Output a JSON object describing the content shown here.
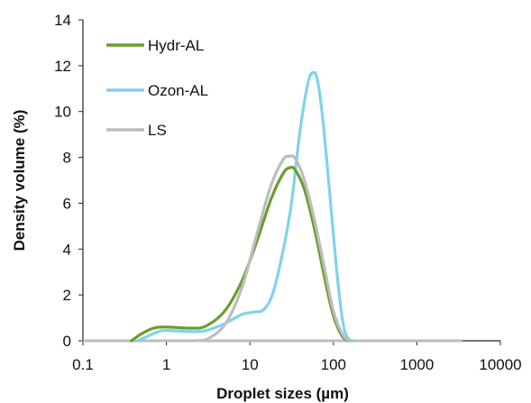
{
  "chart_data": {
    "type": "line",
    "title": "",
    "xlabel": "Droplet sizes (µm)",
    "ylabel": "Density volume (%)",
    "x_scale": "log",
    "xlim": [
      0.1,
      10000
    ],
    "ylim": [
      0,
      14
    ],
    "x_ticks": [
      0.1,
      1,
      10,
      100,
      1000,
      10000
    ],
    "x_tick_labels": [
      "0.1",
      "1",
      "10",
      "100",
      "1000",
      "10000"
    ],
    "y_ticks": [
      0,
      2,
      4,
      6,
      8,
      10,
      12,
      14
    ],
    "y_tick_labels": [
      "0",
      "2",
      "4",
      "6",
      "8",
      "10",
      "12",
      "14"
    ],
    "grid": false,
    "legend_position": "top-left",
    "series": [
      {
        "name": "Hydr-AL",
        "color": "#6a9e2f",
        "points": [
          [
            0.38,
            0
          ],
          [
            0.5,
            0.3
          ],
          [
            0.7,
            0.55
          ],
          [
            1,
            0.6
          ],
          [
            2,
            0.55
          ],
          [
            3,
            0.65
          ],
          [
            5,
            1.3
          ],
          [
            8,
            2.6
          ],
          [
            12,
            4.3
          ],
          [
            18,
            6.2
          ],
          [
            25,
            7.3
          ],
          [
            30,
            7.55
          ],
          [
            35,
            7.45
          ],
          [
            45,
            6.6
          ],
          [
            60,
            4.8
          ],
          [
            80,
            2.6
          ],
          [
            100,
            1.1
          ],
          [
            130,
            0.15
          ],
          [
            160,
            0
          ]
        ]
      },
      {
        "name": "Ozon-AL",
        "color": "#7fd3ec",
        "points": [
          [
            0.45,
            0
          ],
          [
            0.6,
            0.2
          ],
          [
            0.8,
            0.4
          ],
          [
            1,
            0.45
          ],
          [
            2,
            0.4
          ],
          [
            3,
            0.45
          ],
          [
            5,
            0.75
          ],
          [
            8,
            1.15
          ],
          [
            11,
            1.25
          ],
          [
            15,
            1.4
          ],
          [
            20,
            2.4
          ],
          [
            30,
            5.5
          ],
          [
            40,
            9.2
          ],
          [
            50,
            11.3
          ],
          [
            58,
            11.7
          ],
          [
            65,
            11.3
          ],
          [
            75,
            9.6
          ],
          [
            90,
            6.5
          ],
          [
            110,
            3.0
          ],
          [
            130,
            0.8
          ],
          [
            150,
            0.1
          ],
          [
            170,
            0
          ]
        ]
      },
      {
        "name": "LS",
        "color": "#bdbdbd",
        "points": [
          [
            2.2,
            0
          ],
          [
            3,
            0.05
          ],
          [
            5,
            0.7
          ],
          [
            8,
            2.3
          ],
          [
            12,
            4.6
          ],
          [
            18,
            6.8
          ],
          [
            25,
            7.9
          ],
          [
            30,
            8.05
          ],
          [
            35,
            7.95
          ],
          [
            45,
            7.0
          ],
          [
            60,
            5.2
          ],
          [
            80,
            3.0
          ],
          [
            100,
            1.3
          ],
          [
            130,
            0.25
          ],
          [
            160,
            0
          ]
        ]
      }
    ],
    "baseline": {
      "color": "#bdbdbd",
      "x_range": [
        0.1,
        3500
      ],
      "y": 0
    }
  }
}
